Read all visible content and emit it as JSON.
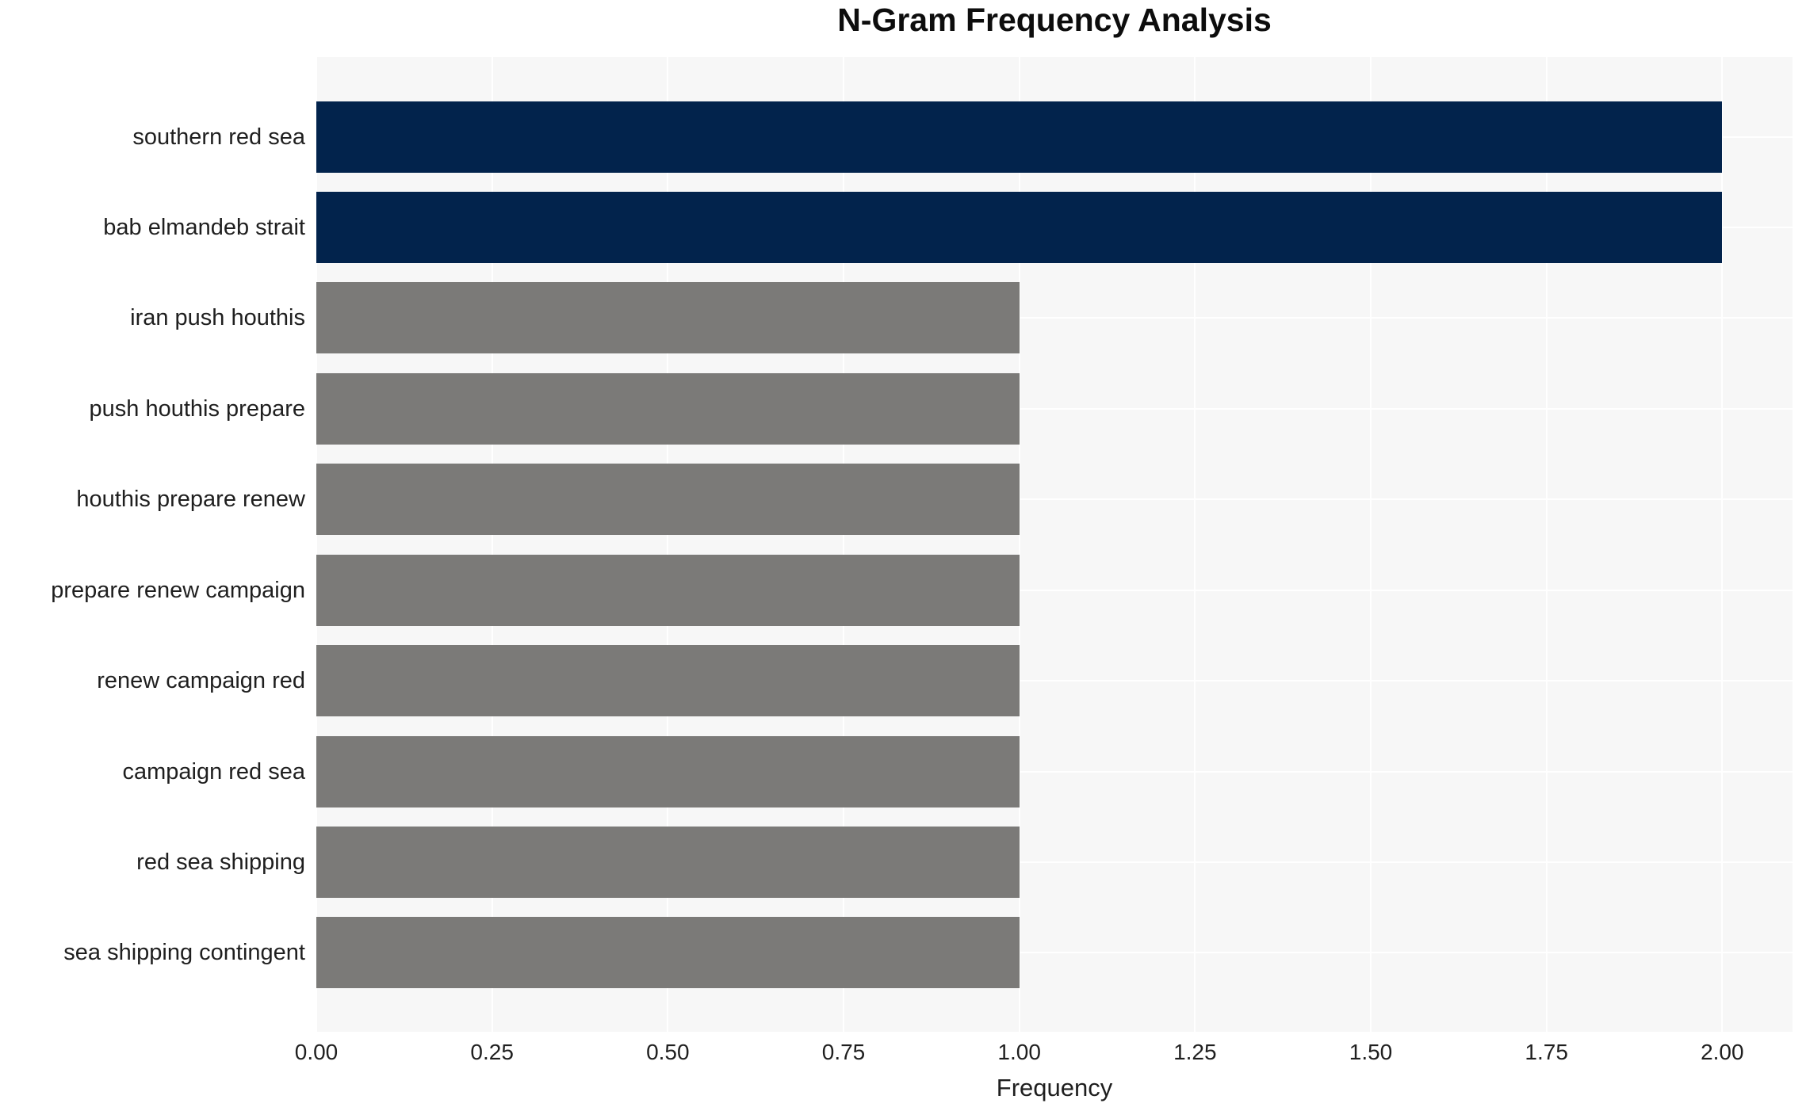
{
  "chart_data": {
    "type": "bar",
    "orientation": "horizontal",
    "title": "N-Gram Frequency Analysis",
    "xlabel": "Frequency",
    "ylabel": "",
    "categories": [
      "southern red sea",
      "bab elmandeb strait",
      "iran push houthis",
      "push houthis prepare",
      "houthis prepare renew",
      "prepare renew campaign",
      "renew campaign red",
      "campaign red sea",
      "red sea shipping",
      "sea shipping contingent"
    ],
    "values": [
      2,
      2,
      1,
      1,
      1,
      1,
      1,
      1,
      1,
      1
    ],
    "bar_colors": [
      "#02234c",
      "#02234c",
      "#7b7a78",
      "#7b7a78",
      "#7b7a78",
      "#7b7a78",
      "#7b7a78",
      "#7b7a78",
      "#7b7a78",
      "#7b7a78"
    ],
    "xlim": [
      0,
      2.1
    ],
    "xticks": [
      0,
      0.25,
      0.5,
      0.75,
      1.0,
      1.25,
      1.5,
      1.75,
      2.0
    ],
    "xtick_labels": [
      "0.00",
      "0.25",
      "0.50",
      "0.75",
      "1.00",
      "1.25",
      "1.50",
      "1.75",
      "2.00"
    ],
    "grid": true,
    "legend": false,
    "colors": {
      "highlight_bar": "#02234c",
      "default_bar": "#7b7a78",
      "plot_background": "#f7f7f7",
      "gridline": "#ffffff",
      "text": "#1f1f1f",
      "title_text": "#0d0d0d",
      "page_background": "#ffffff"
    }
  }
}
